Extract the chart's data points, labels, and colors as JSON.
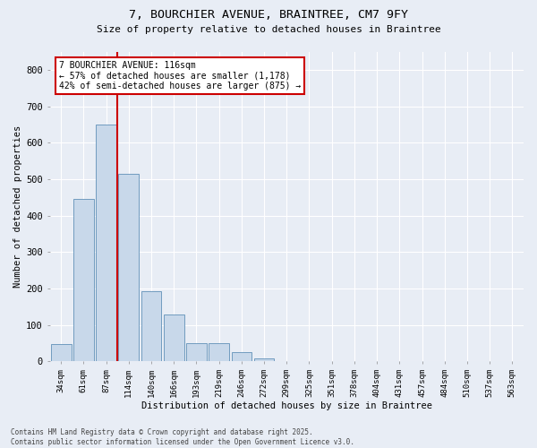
{
  "title_line1": "7, BOURCHIER AVENUE, BRAINTREE, CM7 9FY",
  "title_line2": "Size of property relative to detached houses in Braintree",
  "xlabel": "Distribution of detached houses by size in Braintree",
  "ylabel": "Number of detached properties",
  "bar_color": "#c8d8ea",
  "bar_edge_color": "#6090b8",
  "background_color": "#e8edf5",
  "grid_color": "#ffffff",
  "categories": [
    "34sqm",
    "61sqm",
    "87sqm",
    "114sqm",
    "140sqm",
    "166sqm",
    "193sqm",
    "219sqm",
    "246sqm",
    "272sqm",
    "299sqm",
    "325sqm",
    "351sqm",
    "378sqm",
    "404sqm",
    "431sqm",
    "457sqm",
    "484sqm",
    "510sqm",
    "537sqm",
    "563sqm"
  ],
  "values": [
    47,
    445,
    650,
    515,
    193,
    128,
    50,
    50,
    25,
    8,
    2,
    1,
    0,
    0,
    0,
    0,
    0,
    0,
    0,
    0,
    0
  ],
  "vline_color": "#cc0000",
  "vline_x": 2.5,
  "annotation_text": "7 BOURCHIER AVENUE: 116sqm\n← 57% of detached houses are smaller (1,178)\n42% of semi-detached houses are larger (875) →",
  "annotation_box_color": "#ffffff",
  "annotation_box_edge": "#cc0000",
  "footer_line1": "Contains HM Land Registry data © Crown copyright and database right 2025.",
  "footer_line2": "Contains public sector information licensed under the Open Government Licence v3.0.",
  "ylim": [
    0,
    850
  ],
  "yticks": [
    0,
    100,
    200,
    300,
    400,
    500,
    600,
    700,
    800
  ]
}
